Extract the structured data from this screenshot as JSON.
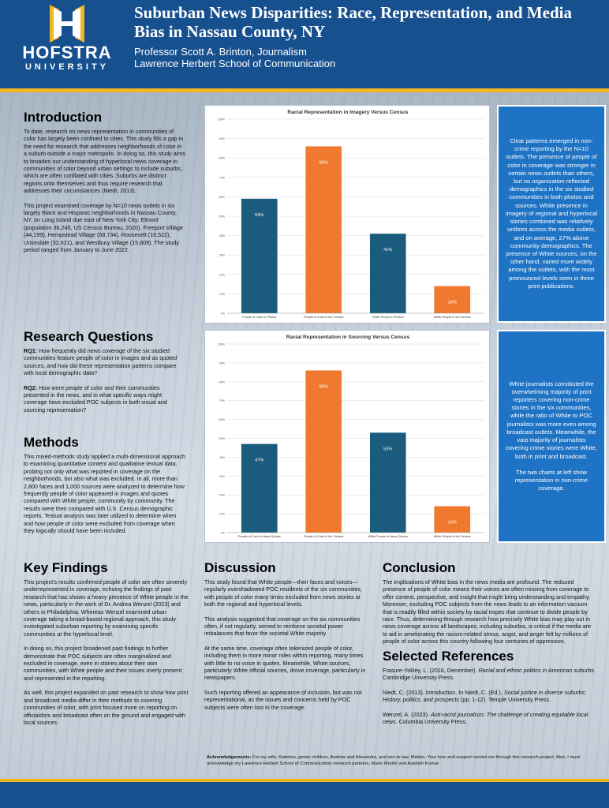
{
  "header": {
    "logo_word": "HOFSTRA",
    "logo_sub": "UNIVERSITY",
    "title": "Suburban News Disparities: Race, Representation, and Media Bias in Nassau County, NY",
    "author": "Professor Scott A. Brinton, Journalism",
    "school": "Lawrence Herbert School of Communication"
  },
  "introduction": {
    "heading": "Introduction",
    "p1": "To date, research on news representation in communities of color has largely been confined to cities. This study fills a gap in the need for research that addresses neighborhoods of color in a suburb outside a major metropolis. In doing so, this study aims to broaden our understanding of hyperlocal news coverage in communities of color beyond urban settings to include suburbs, which are often conflated with cities. Suburbs are distinct regions onto themselves and thus require research that addresses their circumstances (Niedt, 2013).",
    "p2": "This project examined coverage by N=10 news outlets in six largely Black and Hispanic neighborhoods in Nassau County, NY, on Long Island due east of New York City: Elmont (population 36,245, US Census Bureau, 2020), Freeport Village (44,199), Hempstead Village (58,734), Roosevelt (16,522), Uniondale (32,621), and Westbury Village (15,809). The study period ranged from January to June 2022."
  },
  "research_questions": {
    "heading": "Research Questions",
    "rq1_label": "RQ1:",
    "rq1": " How frequently did news coverage of the six studied communities feature people of color in images and as quoted sources, and how did these representation patterns compare with local demographic data?",
    "rq2_label": "RQ2:",
    "rq2": " How were people of color and their communities presented in the news, and in what specific ways might coverage have excluded POC subjects in both visual and sourcing representation?"
  },
  "methods": {
    "heading": "Methods",
    "p1": "This mixed-methods study applied a multi-dimensional approach to examining quantitative content and qualitative textual data, probing not only what was reported in coverage on the neighborhoods, but also what was excluded. In all, more than 2,800 faces and 1,000 sources were analyzed to determine how frequently people of color appeared in images and quotes compared with White people, community by community. The results were then compared with U.S. Census demographic reports. Textual analysis was later utilized to determine when and how people of color were excluded from coverage when they logically should have been included."
  },
  "key_findings": {
    "heading": "Key Findings",
    "p1": "This project's results confirmed people of color are often severely underrepresented in coverage, echoing the findings of past research that has shown a heavy presence of White people in the news, particularly in the work of Dr. Andrea Wenzel (2023) and others in Philadelphia. Whereas Wenzel examined urban coverage taking a broad-based regional approach, this study investigated suburban reporting by examining specific communities at the hyperlocal level.",
    "p2": "In doing so, this project broadened past findings to further demonstrate that POC subjects are often marginalized and excluded in coverage, even in stories about their own communities, with White people and their issues overly present and represented in the reporting.",
    "p3": "As well, this project expanded on past research to show how print and broadcast media differ in their methods to covering communities of color, with print focused more on reporting on officialdom and broadcast often on the ground and engaged with local sources."
  },
  "discussion": {
    "heading": "Discussion",
    "p1": "This study found that White people—their faces and voices—regularly overshadowed POC residents of the six communities, with people of color many times excluded from news stories at both the regional and hyperlocal levels.",
    "p2": "This analysis suggested that coverage on the six communities often, if not regularly, served to reinforce societal power imbalances that favor the societal White majority.",
    "p3": "At the same time, coverage often tokenized people of color, including them in more minor roles within reporting, many times with little to no voice in quotes. Meanwhile, White sources, particularly White official sources, drove coverage, particularly in newspapers.",
    "p4": "Such reporting offered an appearance of inclusion, but was not representational, as the issues and concerns held by POC subjects were often lost in the coverage."
  },
  "conclusion": {
    "heading": "Conclusion",
    "p1": "The implications of White bias in the news media are profound. The reduced presence of people of color means their voices are often missing from coverage to offer context, perspective, and insight that might bring understanding and empathy. Moreover, excluding POC subjects from the news leads to an information vacuum that is readily filled within society by racial tropes that continue to divide people by race. Thus, determining through research how precisely White bias may play out in news coverage across all landscapes, including suburbia, is critical if the media are to aid in ameliorating the racism-related stress, angst, and anger felt by millions of people of color across this country following four centuries of oppression."
  },
  "references": {
    "heading": "Selected References",
    "r1_plain": "Frasure-Yokley, L. (2016, December). ",
    "r1_italic": "Racial and ethnic politics in American suburbs.",
    "r1_tail": " Cambridge University Press.",
    "r2_plain": "Niedt, C. (2013). Introduction. In Niedt, C. (Ed.), ",
    "r2_italic": "Social justice in diverse suburbs: History, politics, and prospects",
    "r2_tail": " (pp. 1-12). Temple University Press.",
    "r3_plain": "Wenzel, A. (2023). ",
    "r3_italic": "Anti-racist journalism: The challenge of creating equitable local news.",
    "r3_tail": " Columbia University Press."
  },
  "acknowledgements": {
    "label": "Acknowledgements:",
    "text": " For my wife, Katerina, grown children, Andrew and Alexandra, and son-in-law, Matteo. Your love and support carried me through this research project. Also, I must acknowledge my Lawrence Herbert School of Communication research partners, Mario Murillo and Aashish Kumar."
  },
  "callouts": {
    "top": "Clear patterns emerged in non-crime reporting by the N=10 outlets. The presence of people of color in coverage was stronger in certain news outlets than others, but no organization reflected demographics in the six studied communities in both photos and sources. White presence in imagery of regional and hyperlocal stories combined was relatively uniform across the media outlets, and on average, 27% above community demographics. The presence of White sources, on the other hand, varied more widely among the outlets, with the most pronounced levels seen in three print publications.",
    "bottom_p1": "White journalists constituted the overwhelming majority of print reporters covering non-crime stories in the six communities, while the ratio of White to POC journalists was more even among broadcast outlets. Meanwhile, the vast majority of journalists covering crime stories were White, both in print and broadcast.",
    "bottom_p2": "The two charts at left show representation in non-crime coverage."
  },
  "colors": {
    "blue_bar": "#1b5c7e",
    "orange_bar": "#ef7a2f",
    "header_blue": "#17508f",
    "gold": "#f3b623",
    "callout_blue": "#1f73c4"
  },
  "chart_data": [
    {
      "type": "bar",
      "title": "Racial Representation in Imagery Versus Census",
      "categories": [
        "People of Color in Photos",
        "People of Color in the Census",
        "White People in Photos",
        "White People in the Census"
      ],
      "values": [
        59,
        86,
        41,
        14
      ],
      "value_labels": [
        "59%",
        "86%",
        "41%",
        "14%"
      ],
      "bar_colors": [
        "#1b5c7e",
        "#ef7a2f",
        "#1b5c7e",
        "#ef7a2f"
      ],
      "ylim": [
        0,
        100
      ],
      "yticks": [
        "0%",
        "10%",
        "20%",
        "30%",
        "40%",
        "50%",
        "60%",
        "70%",
        "80%",
        "90%",
        "100%"
      ],
      "grid": true
    },
    {
      "type": "bar",
      "title": "Racial Representation in Sourcing Versus Census",
      "categories": [
        "People of Color in News Quotes",
        "People of Color in the Census",
        "White People in News Quotes",
        "White People in the Census"
      ],
      "values": [
        47,
        86,
        53,
        14
      ],
      "value_labels": [
        "47%",
        "86%",
        "53%",
        "14%"
      ],
      "bar_colors": [
        "#1b5c7e",
        "#ef7a2f",
        "#1b5c7e",
        "#ef7a2f"
      ],
      "ylim": [
        0,
        100
      ],
      "yticks": [
        "0%",
        "10%",
        "20%",
        "30%",
        "40%",
        "50%",
        "60%",
        "70%",
        "80%",
        "90%",
        "100%"
      ],
      "grid": true
    }
  ]
}
